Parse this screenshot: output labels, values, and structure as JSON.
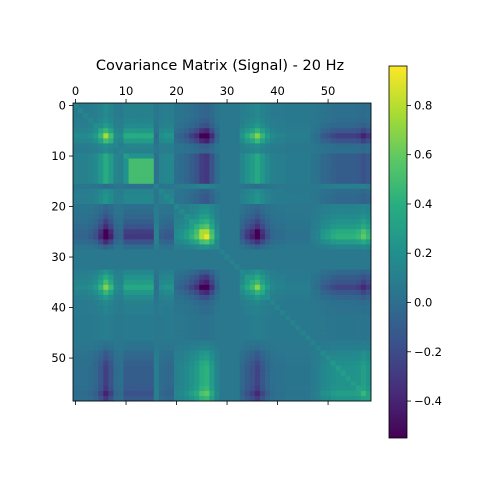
{
  "chart_data": {
    "type": "heatmap",
    "title": "Covariance Matrix (Signal) - 20 Hz",
    "rows": 59,
    "cols": 59,
    "x_ticks": [
      0,
      10,
      20,
      30,
      40,
      50
    ],
    "y_ticks": [
      0,
      10,
      20,
      30,
      40,
      50
    ],
    "x_ticks_position": "top",
    "colormap": "viridis",
    "value_range": [
      -0.55,
      0.96
    ],
    "colorbar_ticks": [
      0.8,
      0.6,
      0.4,
      0.2,
      0.0,
      -0.2,
      -0.4
    ],
    "colorbar_tick_labels": [
      "0.8",
      "0.6",
      "0.4",
      "0.2",
      "0.0",
      "−0.2",
      "−0.4"
    ],
    "channel_weights": [
      0.15,
      0.15,
      0.15,
      0.2,
      0.3,
      0.55,
      0.9,
      0.6,
      0.2,
      0.15,
      0.45,
      0.45,
      0.45,
      0.45,
      0.45,
      0.45,
      -0.1,
      0.2,
      0.25,
      0.25,
      -0.15,
      -0.2,
      -0.3,
      -0.45,
      -0.6,
      -0.9,
      -1.0,
      -0.6,
      -0.2,
      0,
      0,
      0,
      0,
      0.25,
      0.45,
      0.6,
      0.85,
      0.55,
      0.3,
      0.15,
      0.1,
      0.1,
      0.05,
      0.05,
      0.05,
      0.05,
      0.05,
      -0.05,
      -0.1,
      -0.25,
      -0.3,
      -0.4,
      -0.45,
      -0.45,
      -0.45,
      -0.45,
      -0.5,
      -0.65,
      -0.5
    ],
    "block_weights": [
      0,
      0,
      0,
      0,
      0,
      0,
      0,
      0,
      0,
      0,
      0,
      0,
      0,
      0,
      0,
      0,
      0,
      0.1,
      0.15,
      0.15,
      0.1,
      0.1,
      0.1,
      0.1,
      0.1,
      0.1,
      0.1,
      0.1,
      0.05,
      0,
      0,
      0,
      0,
      0,
      0,
      0,
      0,
      0,
      0,
      0,
      0,
      0,
      0,
      0,
      0,
      0,
      0,
      0,
      0,
      0,
      0,
      0,
      0,
      0,
      0,
      0,
      0,
      0,
      0
    ],
    "baseline": 0.06,
    "special_block": {
      "rows": [
        11,
        15
      ],
      "cols": [
        11,
        15
      ],
      "value": 0.5
    }
  }
}
